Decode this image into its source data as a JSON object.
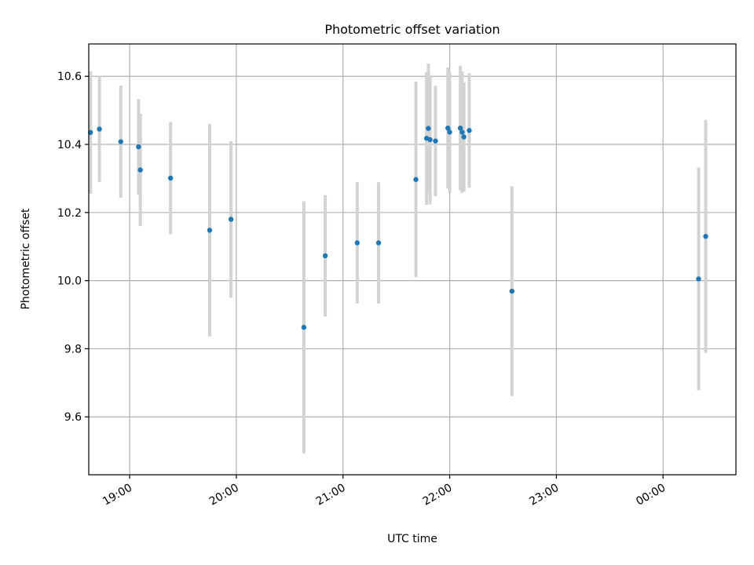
{
  "chart_data": {
    "type": "scatter",
    "title": "Photometric offset variation",
    "xlabel": "UTC time",
    "ylabel": "Photometric offset",
    "grid": true,
    "x_axis_type": "time",
    "xlim": [
      "18:37",
      "00:41"
    ],
    "ylim": [
      9.43,
      10.695
    ],
    "xticks": [
      "19:00",
      "20:00",
      "21:00",
      "22:00",
      "23:00",
      "00:00"
    ],
    "yticks": [
      "9.6",
      "9.8",
      "10.0",
      "10.2",
      "10.4",
      "10.6"
    ],
    "points": [
      {
        "t": "18:38",
        "y": 10.435,
        "err": 0.18
      },
      {
        "t": "18:43",
        "y": 10.445,
        "err": 0.155
      },
      {
        "t": "18:55",
        "y": 10.408,
        "err": 0.165
      },
      {
        "t": "19:05",
        "y": 10.393,
        "err": 0.14
      },
      {
        "t": "19:06",
        "y": 10.325,
        "err": 0.165
      },
      {
        "t": "19:23",
        "y": 10.301,
        "err": 0.165
      },
      {
        "t": "19:45",
        "y": 10.148,
        "err": 0.312
      },
      {
        "t": "19:57",
        "y": 10.18,
        "err": 0.23
      },
      {
        "t": "20:38",
        "y": 9.863,
        "err": 0.37
      },
      {
        "t": "20:50",
        "y": 10.073,
        "err": 0.178
      },
      {
        "t": "21:08",
        "y": 10.111,
        "err": 0.178
      },
      {
        "t": "21:20",
        "y": 10.111,
        "err": 0.178
      },
      {
        "t": "21:41",
        "y": 10.297,
        "err": 0.287
      },
      {
        "t": "21:47",
        "y": 10.418,
        "err": 0.195
      },
      {
        "t": "21:48",
        "y": 10.447,
        "err": 0.19
      },
      {
        "t": "21:49",
        "y": 10.414,
        "err": 0.19
      },
      {
        "t": "21:52",
        "y": 10.41,
        "err": 0.162
      },
      {
        "t": "21:59",
        "y": 10.448,
        "err": 0.178
      },
      {
        "t": "22:00",
        "y": 10.436,
        "err": 0.178
      },
      {
        "t": "22:06",
        "y": 10.448,
        "err": 0.183
      },
      {
        "t": "22:07",
        "y": 10.436,
        "err": 0.178
      },
      {
        "t": "22:08",
        "y": 10.422,
        "err": 0.16
      },
      {
        "t": "22:11",
        "y": 10.441,
        "err": 0.168
      },
      {
        "t": "22:35",
        "y": 9.969,
        "err": 0.308
      },
      {
        "t": "00:20",
        "y": 10.005,
        "err": 0.327
      },
      {
        "t": "00:24",
        "y": 10.13,
        "err": 0.342
      }
    ],
    "colors": {
      "marker": "#1f77b4",
      "errorbar": "#d3d3d3",
      "grid": "#b0b0b0",
      "axes": "#000000"
    }
  }
}
